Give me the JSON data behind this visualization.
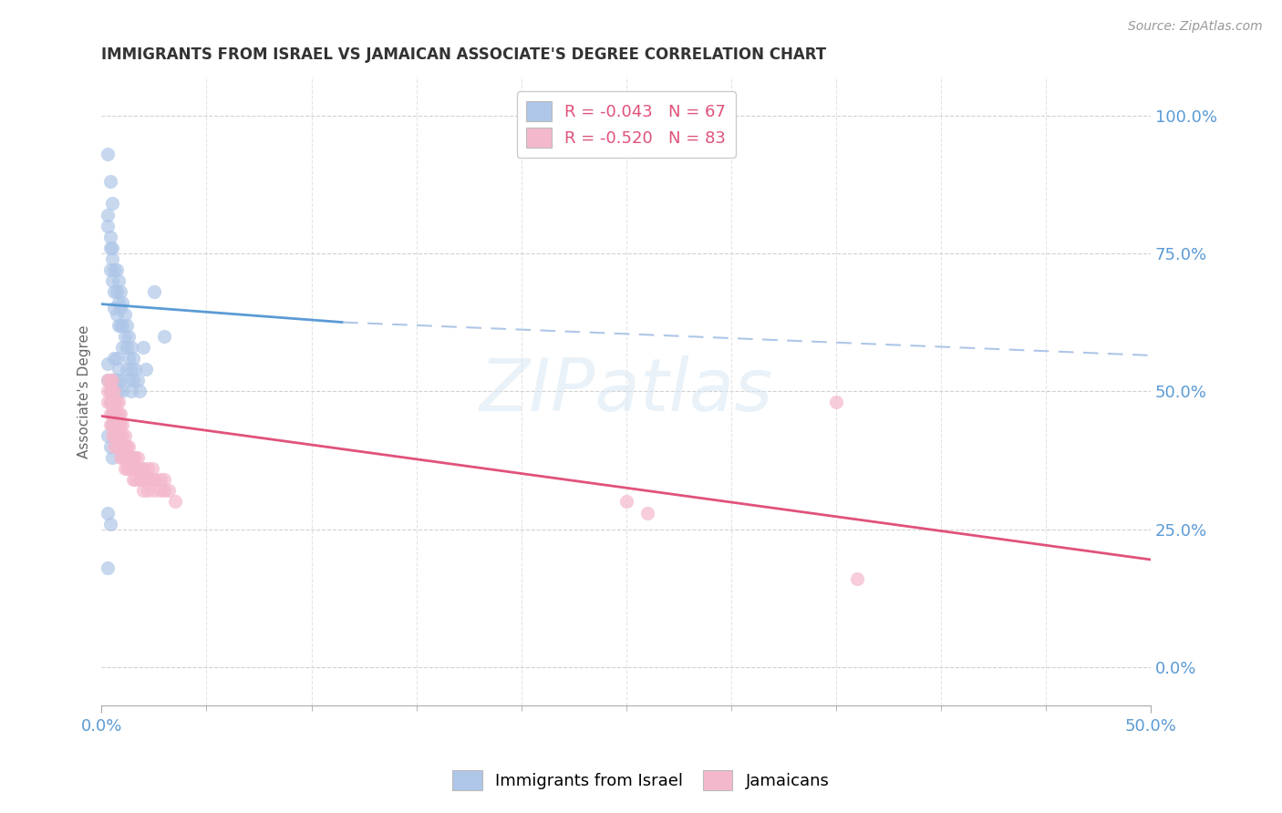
{
  "title": "IMMIGRANTS FROM ISRAEL VS JAMAICAN ASSOCIATE'S DEGREE CORRELATION CHART",
  "source": "Source: ZipAtlas.com",
  "xmin": 0.0,
  "xmax": 0.5,
  "ymin": -0.07,
  "ymax": 1.07,
  "ytick_vals": [
    0.0,
    0.25,
    0.5,
    0.75,
    1.0
  ],
  "ytick_labels": [
    "0.0%",
    "25.0%",
    "50.0%",
    "75.0%",
    "100.0%"
  ],
  "xtick_vals": [
    0.0,
    0.5
  ],
  "xtick_labels": [
    "0.0%",
    "50.0%"
  ],
  "xtick_minor_vals": [
    0.05,
    0.1,
    0.15,
    0.2,
    0.25,
    0.3,
    0.35,
    0.4,
    0.45
  ],
  "blue_scatter": [
    [
      0.003,
      0.93
    ],
    [
      0.004,
      0.88
    ],
    [
      0.005,
      0.84
    ],
    [
      0.003,
      0.82
    ],
    [
      0.004,
      0.78
    ],
    [
      0.005,
      0.76
    ],
    [
      0.003,
      0.8
    ],
    [
      0.004,
      0.76
    ],
    [
      0.004,
      0.72
    ],
    [
      0.005,
      0.74
    ],
    [
      0.005,
      0.7
    ],
    [
      0.006,
      0.72
    ],
    [
      0.006,
      0.68
    ],
    [
      0.006,
      0.65
    ],
    [
      0.007,
      0.72
    ],
    [
      0.007,
      0.68
    ],
    [
      0.007,
      0.64
    ],
    [
      0.008,
      0.7
    ],
    [
      0.008,
      0.66
    ],
    [
      0.008,
      0.62
    ],
    [
      0.009,
      0.68
    ],
    [
      0.009,
      0.65
    ],
    [
      0.009,
      0.62
    ],
    [
      0.01,
      0.66
    ],
    [
      0.01,
      0.62
    ],
    [
      0.01,
      0.58
    ],
    [
      0.011,
      0.64
    ],
    [
      0.011,
      0.6
    ],
    [
      0.012,
      0.62
    ],
    [
      0.012,
      0.58
    ],
    [
      0.013,
      0.6
    ],
    [
      0.013,
      0.56
    ],
    [
      0.014,
      0.58
    ],
    [
      0.014,
      0.54
    ],
    [
      0.015,
      0.56
    ],
    [
      0.015,
      0.52
    ],
    [
      0.016,
      0.54
    ],
    [
      0.017,
      0.52
    ],
    [
      0.018,
      0.5
    ],
    [
      0.02,
      0.58
    ],
    [
      0.021,
      0.54
    ],
    [
      0.003,
      0.55
    ],
    [
      0.003,
      0.52
    ],
    [
      0.004,
      0.5
    ],
    [
      0.004,
      0.48
    ],
    [
      0.005,
      0.46
    ],
    [
      0.005,
      0.44
    ],
    [
      0.006,
      0.56
    ],
    [
      0.006,
      0.52
    ],
    [
      0.006,
      0.48
    ],
    [
      0.007,
      0.56
    ],
    [
      0.007,
      0.52
    ],
    [
      0.008,
      0.54
    ],
    [
      0.008,
      0.5
    ],
    [
      0.009,
      0.52
    ],
    [
      0.01,
      0.5
    ],
    [
      0.003,
      0.42
    ],
    [
      0.004,
      0.4
    ],
    [
      0.005,
      0.38
    ],
    [
      0.003,
      0.28
    ],
    [
      0.004,
      0.26
    ],
    [
      0.003,
      0.18
    ],
    [
      0.012,
      0.54
    ],
    [
      0.013,
      0.52
    ],
    [
      0.014,
      0.5
    ],
    [
      0.025,
      0.68
    ],
    [
      0.03,
      0.6
    ]
  ],
  "pink_scatter": [
    [
      0.003,
      0.52
    ],
    [
      0.003,
      0.5
    ],
    [
      0.003,
      0.48
    ],
    [
      0.004,
      0.52
    ],
    [
      0.004,
      0.5
    ],
    [
      0.004,
      0.48
    ],
    [
      0.004,
      0.46
    ],
    [
      0.004,
      0.44
    ],
    [
      0.005,
      0.52
    ],
    [
      0.005,
      0.5
    ],
    [
      0.005,
      0.48
    ],
    [
      0.005,
      0.46
    ],
    [
      0.005,
      0.44
    ],
    [
      0.005,
      0.42
    ],
    [
      0.006,
      0.5
    ],
    [
      0.006,
      0.48
    ],
    [
      0.006,
      0.46
    ],
    [
      0.006,
      0.44
    ],
    [
      0.006,
      0.42
    ],
    [
      0.006,
      0.4
    ],
    [
      0.007,
      0.48
    ],
    [
      0.007,
      0.46
    ],
    [
      0.007,
      0.44
    ],
    [
      0.007,
      0.42
    ],
    [
      0.007,
      0.4
    ],
    [
      0.008,
      0.48
    ],
    [
      0.008,
      0.46
    ],
    [
      0.008,
      0.44
    ],
    [
      0.008,
      0.42
    ],
    [
      0.008,
      0.4
    ],
    [
      0.009,
      0.46
    ],
    [
      0.009,
      0.44
    ],
    [
      0.009,
      0.42
    ],
    [
      0.009,
      0.4
    ],
    [
      0.009,
      0.38
    ],
    [
      0.01,
      0.44
    ],
    [
      0.01,
      0.42
    ],
    [
      0.01,
      0.4
    ],
    [
      0.01,
      0.38
    ],
    [
      0.011,
      0.42
    ],
    [
      0.011,
      0.4
    ],
    [
      0.011,
      0.38
    ],
    [
      0.011,
      0.36
    ],
    [
      0.012,
      0.4
    ],
    [
      0.012,
      0.38
    ],
    [
      0.012,
      0.36
    ],
    [
      0.013,
      0.4
    ],
    [
      0.013,
      0.38
    ],
    [
      0.013,
      0.36
    ],
    [
      0.014,
      0.38
    ],
    [
      0.014,
      0.36
    ],
    [
      0.015,
      0.38
    ],
    [
      0.015,
      0.36
    ],
    [
      0.015,
      0.34
    ],
    [
      0.016,
      0.38
    ],
    [
      0.016,
      0.36
    ],
    [
      0.016,
      0.34
    ],
    [
      0.017,
      0.38
    ],
    [
      0.017,
      0.36
    ],
    [
      0.018,
      0.36
    ],
    [
      0.018,
      0.34
    ],
    [
      0.019,
      0.36
    ],
    [
      0.019,
      0.34
    ],
    [
      0.02,
      0.36
    ],
    [
      0.02,
      0.34
    ],
    [
      0.02,
      0.32
    ],
    [
      0.022,
      0.36
    ],
    [
      0.022,
      0.34
    ],
    [
      0.022,
      0.32
    ],
    [
      0.024,
      0.36
    ],
    [
      0.024,
      0.34
    ],
    [
      0.025,
      0.34
    ],
    [
      0.025,
      0.32
    ],
    [
      0.028,
      0.34
    ],
    [
      0.028,
      0.32
    ],
    [
      0.03,
      0.34
    ],
    [
      0.03,
      0.32
    ],
    [
      0.032,
      0.32
    ],
    [
      0.035,
      0.3
    ],
    [
      0.35,
      0.48
    ],
    [
      0.36,
      0.16
    ],
    [
      0.25,
      0.3
    ],
    [
      0.26,
      0.28
    ]
  ],
  "blue_line": [
    [
      0.0,
      0.658
    ],
    [
      0.115,
      0.625
    ]
  ],
  "blue_dashed_line": [
    [
      0.115,
      0.625
    ],
    [
      0.5,
      0.565
    ]
  ],
  "pink_line": [
    [
      0.0,
      0.455
    ],
    [
      0.5,
      0.195
    ]
  ],
  "background_color": "#ffffff",
  "grid_color": "#cccccc",
  "blue_scatter_color": "#aec6e8",
  "pink_scatter_color": "#f4b8cc",
  "blue_line_color": "#5b9bd5",
  "pink_line_color": "#e0527a",
  "dashed_line_color": "#aec6e8",
  "axis_tick_color": "#5b9bd5",
  "title_color": "#333333",
  "watermark_text": "ZIPatlas",
  "legend_blue_text": "R = -0.043   N = 67",
  "legend_pink_text": "R = -0.520   N = 83",
  "legend_text_color": "#e0527a",
  "bottom_legend_blue": "Immigrants from Israel",
  "bottom_legend_pink": "Jamaicans",
  "ylabel": "Associate's Degree"
}
